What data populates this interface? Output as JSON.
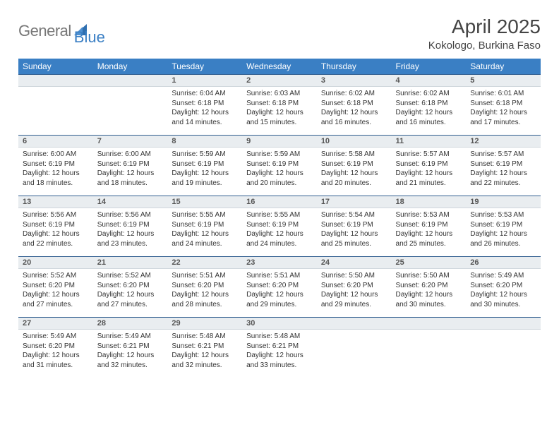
{
  "logo": {
    "text1": "General",
    "text2": "Blue"
  },
  "title": "April 2025",
  "location": "Kokologo, Burkina Faso",
  "colors": {
    "header_bg": "#3a7fc4",
    "header_text": "#ffffff",
    "daynum_bg": "#e9edf0",
    "daynum_border_top": "#2f5d8f",
    "body_text": "#333333"
  },
  "weekdays": [
    "Sunday",
    "Monday",
    "Tuesday",
    "Wednesday",
    "Thursday",
    "Friday",
    "Saturday"
  ],
  "weeks": [
    [
      {
        "n": ""
      },
      {
        "n": ""
      },
      {
        "n": "1",
        "sr": "Sunrise: 6:04 AM",
        "ss": "Sunset: 6:18 PM",
        "dl": "Daylight: 12 hours and 14 minutes."
      },
      {
        "n": "2",
        "sr": "Sunrise: 6:03 AM",
        "ss": "Sunset: 6:18 PM",
        "dl": "Daylight: 12 hours and 15 minutes."
      },
      {
        "n": "3",
        "sr": "Sunrise: 6:02 AM",
        "ss": "Sunset: 6:18 PM",
        "dl": "Daylight: 12 hours and 16 minutes."
      },
      {
        "n": "4",
        "sr": "Sunrise: 6:02 AM",
        "ss": "Sunset: 6:18 PM",
        "dl": "Daylight: 12 hours and 16 minutes."
      },
      {
        "n": "5",
        "sr": "Sunrise: 6:01 AM",
        "ss": "Sunset: 6:18 PM",
        "dl": "Daylight: 12 hours and 17 minutes."
      }
    ],
    [
      {
        "n": "6",
        "sr": "Sunrise: 6:00 AM",
        "ss": "Sunset: 6:19 PM",
        "dl": "Daylight: 12 hours and 18 minutes."
      },
      {
        "n": "7",
        "sr": "Sunrise: 6:00 AM",
        "ss": "Sunset: 6:19 PM",
        "dl": "Daylight: 12 hours and 18 minutes."
      },
      {
        "n": "8",
        "sr": "Sunrise: 5:59 AM",
        "ss": "Sunset: 6:19 PM",
        "dl": "Daylight: 12 hours and 19 minutes."
      },
      {
        "n": "9",
        "sr": "Sunrise: 5:59 AM",
        "ss": "Sunset: 6:19 PM",
        "dl": "Daylight: 12 hours and 20 minutes."
      },
      {
        "n": "10",
        "sr": "Sunrise: 5:58 AM",
        "ss": "Sunset: 6:19 PM",
        "dl": "Daylight: 12 hours and 20 minutes."
      },
      {
        "n": "11",
        "sr": "Sunrise: 5:57 AM",
        "ss": "Sunset: 6:19 PM",
        "dl": "Daylight: 12 hours and 21 minutes."
      },
      {
        "n": "12",
        "sr": "Sunrise: 5:57 AM",
        "ss": "Sunset: 6:19 PM",
        "dl": "Daylight: 12 hours and 22 minutes."
      }
    ],
    [
      {
        "n": "13",
        "sr": "Sunrise: 5:56 AM",
        "ss": "Sunset: 6:19 PM",
        "dl": "Daylight: 12 hours and 22 minutes."
      },
      {
        "n": "14",
        "sr": "Sunrise: 5:56 AM",
        "ss": "Sunset: 6:19 PM",
        "dl": "Daylight: 12 hours and 23 minutes."
      },
      {
        "n": "15",
        "sr": "Sunrise: 5:55 AM",
        "ss": "Sunset: 6:19 PM",
        "dl": "Daylight: 12 hours and 24 minutes."
      },
      {
        "n": "16",
        "sr": "Sunrise: 5:55 AM",
        "ss": "Sunset: 6:19 PM",
        "dl": "Daylight: 12 hours and 24 minutes."
      },
      {
        "n": "17",
        "sr": "Sunrise: 5:54 AM",
        "ss": "Sunset: 6:19 PM",
        "dl": "Daylight: 12 hours and 25 minutes."
      },
      {
        "n": "18",
        "sr": "Sunrise: 5:53 AM",
        "ss": "Sunset: 6:19 PM",
        "dl": "Daylight: 12 hours and 25 minutes."
      },
      {
        "n": "19",
        "sr": "Sunrise: 5:53 AM",
        "ss": "Sunset: 6:19 PM",
        "dl": "Daylight: 12 hours and 26 minutes."
      }
    ],
    [
      {
        "n": "20",
        "sr": "Sunrise: 5:52 AM",
        "ss": "Sunset: 6:20 PM",
        "dl": "Daylight: 12 hours and 27 minutes."
      },
      {
        "n": "21",
        "sr": "Sunrise: 5:52 AM",
        "ss": "Sunset: 6:20 PM",
        "dl": "Daylight: 12 hours and 27 minutes."
      },
      {
        "n": "22",
        "sr": "Sunrise: 5:51 AM",
        "ss": "Sunset: 6:20 PM",
        "dl": "Daylight: 12 hours and 28 minutes."
      },
      {
        "n": "23",
        "sr": "Sunrise: 5:51 AM",
        "ss": "Sunset: 6:20 PM",
        "dl": "Daylight: 12 hours and 29 minutes."
      },
      {
        "n": "24",
        "sr": "Sunrise: 5:50 AM",
        "ss": "Sunset: 6:20 PM",
        "dl": "Daylight: 12 hours and 29 minutes."
      },
      {
        "n": "25",
        "sr": "Sunrise: 5:50 AM",
        "ss": "Sunset: 6:20 PM",
        "dl": "Daylight: 12 hours and 30 minutes."
      },
      {
        "n": "26",
        "sr": "Sunrise: 5:49 AM",
        "ss": "Sunset: 6:20 PM",
        "dl": "Daylight: 12 hours and 30 minutes."
      }
    ],
    [
      {
        "n": "27",
        "sr": "Sunrise: 5:49 AM",
        "ss": "Sunset: 6:20 PM",
        "dl": "Daylight: 12 hours and 31 minutes."
      },
      {
        "n": "28",
        "sr": "Sunrise: 5:49 AM",
        "ss": "Sunset: 6:21 PM",
        "dl": "Daylight: 12 hours and 32 minutes."
      },
      {
        "n": "29",
        "sr": "Sunrise: 5:48 AM",
        "ss": "Sunset: 6:21 PM",
        "dl": "Daylight: 12 hours and 32 minutes."
      },
      {
        "n": "30",
        "sr": "Sunrise: 5:48 AM",
        "ss": "Sunset: 6:21 PM",
        "dl": "Daylight: 12 hours and 33 minutes."
      },
      {
        "n": ""
      },
      {
        "n": ""
      },
      {
        "n": ""
      }
    ]
  ]
}
